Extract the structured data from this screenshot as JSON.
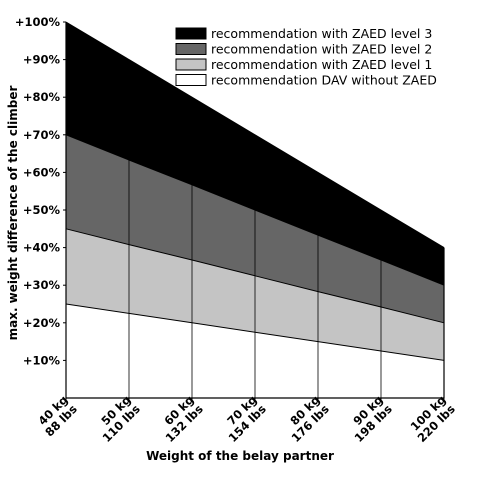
{
  "chart_data": {
    "type": "area",
    "title": "",
    "xlabel": "Weight of the belay partner",
    "ylabel": "max. weight difference of the climber",
    "x": [
      40,
      50,
      60,
      70,
      80,
      90,
      100
    ],
    "x_tick_labels": [
      [
        "40 kg",
        "88 lbs"
      ],
      [
        "50 kg",
        "110 lbs"
      ],
      [
        "60 kg",
        "132 lbs"
      ],
      [
        "70 kg",
        "154 lbs"
      ],
      [
        "80 kg",
        "176 lbs"
      ],
      [
        "90 kg",
        "198 lbs"
      ],
      [
        "100 kg",
        "220 lbs"
      ]
    ],
    "ylim": [
      0,
      100
    ],
    "y_ticks": [
      10,
      20,
      30,
      40,
      50,
      60,
      70,
      80,
      90,
      100
    ],
    "y_tick_labels": [
      "+10%",
      "+20%",
      "+30%",
      "+40%",
      "+50%",
      "+60%",
      "+70%",
      "+80%",
      "+90%",
      "+100%"
    ],
    "series": [
      {
        "name": "recommendation with ZAED level 3",
        "color": "#000000",
        "values": [
          100,
          90,
          80,
          70,
          60,
          50,
          40
        ]
      },
      {
        "name": "recommendation with ZAED level 2",
        "color": "#666666",
        "values": [
          70,
          63.3,
          56.7,
          50,
          43.3,
          36.7,
          30
        ]
      },
      {
        "name": "recommendation with ZAED level 1",
        "color": "#c4c4c4",
        "values": [
          45,
          40.8,
          36.7,
          32.5,
          28.3,
          24.2,
          20
        ]
      },
      {
        "name": "recommendation DAV without ZAED",
        "color": "#ffffff",
        "values": [
          25,
          22.5,
          20,
          17.5,
          15,
          12.5,
          10
        ]
      }
    ],
    "grid": "vertical",
    "legend_position": "top-right"
  }
}
